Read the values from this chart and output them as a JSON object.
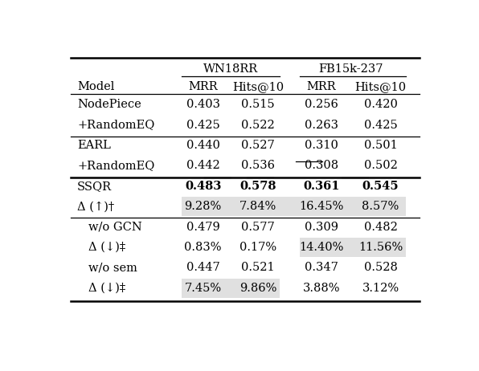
{
  "rows": [
    {
      "model": "NodePiece",
      "wn_mrr": "0.403",
      "wn_h10": "0.515",
      "fb_mrr": "0.256",
      "fb_h10": "0.420",
      "bold": [],
      "underline": [],
      "shade": false,
      "shade_partial": [],
      "indent": false
    },
    {
      "model": "+RandomEQ",
      "wn_mrr": "0.425",
      "wn_h10": "0.522",
      "fb_mrr": "0.263",
      "fb_h10": "0.425",
      "bold": [],
      "underline": [],
      "shade": false,
      "shade_partial": [],
      "indent": false
    },
    {
      "model": "EARL",
      "wn_mrr": "0.440",
      "wn_h10": "0.527",
      "fb_mrr": "0.310",
      "fb_h10": "0.501",
      "bold": [],
      "underline": [
        "fb_mrr"
      ],
      "shade": false,
      "shade_partial": [],
      "indent": false
    },
    {
      "model": "+RandomEQ",
      "wn_mrr": "0.442",
      "wn_h10": "0.536",
      "fb_mrr": "0.308",
      "fb_h10": "0.502",
      "bold": [],
      "underline": [
        "wn_mrr",
        "wn_h10",
        "fb_h10"
      ],
      "shade": false,
      "shade_partial": [],
      "indent": false
    },
    {
      "model": "SSQR",
      "wn_mrr": "0.483",
      "wn_h10": "0.578",
      "fb_mrr": "0.361",
      "fb_h10": "0.545",
      "bold": [
        "wn_mrr",
        "wn_h10",
        "fb_mrr",
        "fb_h10"
      ],
      "underline": [],
      "shade": false,
      "shade_partial": [],
      "indent": false
    },
    {
      "model": "Δ (↑)†",
      "wn_mrr": "9.28%",
      "wn_h10": "7.84%",
      "fb_mrr": "16.45%",
      "fb_h10": "8.57%",
      "bold": [],
      "underline": [],
      "shade": true,
      "shade_partial": [],
      "indent": false
    },
    {
      "model": "w/o GCN",
      "wn_mrr": "0.479",
      "wn_h10": "0.577",
      "fb_mrr": "0.309",
      "fb_h10": "0.482",
      "bold": [],
      "underline": [],
      "shade": false,
      "shade_partial": [],
      "indent": true
    },
    {
      "model": "Δ (↓)‡",
      "wn_mrr": "0.83%",
      "wn_h10": "0.17%",
      "fb_mrr": "14.40%",
      "fb_h10": "11.56%",
      "bold": [],
      "underline": [],
      "shade": false,
      "shade_partial": [
        "fb"
      ],
      "indent": true
    },
    {
      "model": "w/o sem",
      "wn_mrr": "0.447",
      "wn_h10": "0.521",
      "fb_mrr": "0.347",
      "fb_h10": "0.528",
      "bold": [],
      "underline": [],
      "shade": false,
      "shade_partial": [],
      "indent": true
    },
    {
      "model": "Δ (↓)‡",
      "wn_mrr": "7.45%",
      "wn_h10": "9.86%",
      "fb_mrr": "3.88%",
      "fb_h10": "3.12%",
      "bold": [],
      "underline": [],
      "shade": false,
      "shade_partial": [
        "wn"
      ],
      "indent": true
    }
  ],
  "dividers_after_thin": [
    1,
    3
  ],
  "dividers_after_thick": [
    3,
    5
  ],
  "dividers_after_single_thin": [
    1,
    5
  ],
  "shade_color": "#e0e0e0",
  "background_color": "#ffffff",
  "font_size": 10.5
}
